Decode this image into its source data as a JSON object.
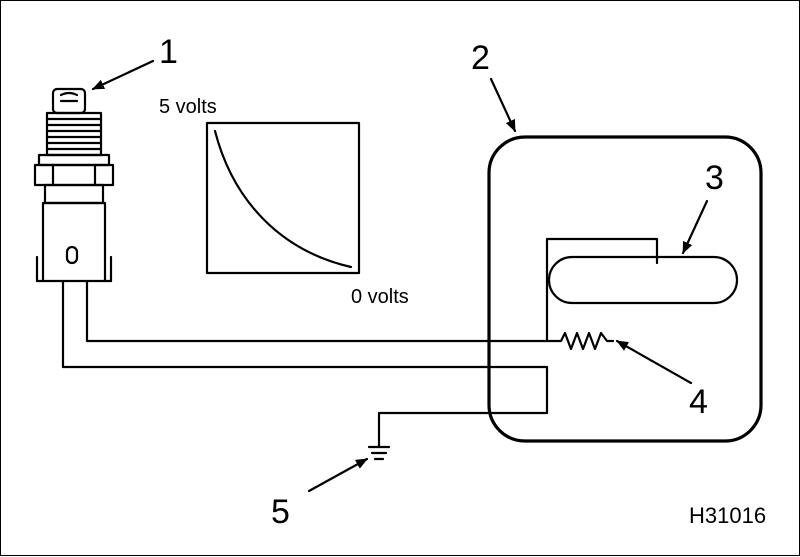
{
  "figure": {
    "id": "H31016",
    "callouts": [
      "1",
      "2",
      "3",
      "4",
      "5"
    ],
    "graph": {
      "top_label": "5 volts",
      "bottom_label": "0 volts"
    }
  }
}
